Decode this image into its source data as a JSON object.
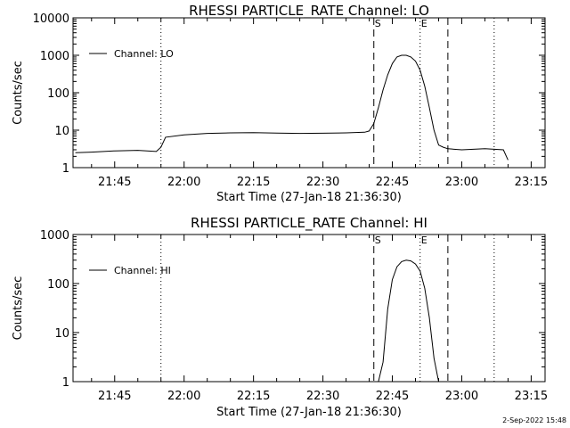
{
  "footer": "2-Sep-2022 15:48",
  "chart_data": [
    {
      "type": "line",
      "title": "RHESSI PARTICLE_RATE Channel: LO",
      "xlabel": "Start Time (27-Jan-18 21:36:30)",
      "ylabel": "Counts/sec",
      "yscale": "log",
      "ylim": [
        1,
        10000
      ],
      "xlim_minutes": [
        21.6,
        23.3
      ],
      "x_ticks": [
        "21:45",
        "22:00",
        "22:15",
        "22:30",
        "22:45",
        "23:00",
        "23:15"
      ],
      "y_ticks": [
        "1",
        "10",
        "100",
        "1000",
        "10000"
      ],
      "legend": {
        "label": "Channel: LO",
        "position": "top-left"
      },
      "vlines": [
        {
          "x": "21:55",
          "style": "dotted",
          "label": ""
        },
        {
          "x": "22:41",
          "style": "dashed",
          "label": "S"
        },
        {
          "x": "22:51",
          "style": "dotted",
          "label": "E"
        },
        {
          "x": "22:57",
          "style": "dashed",
          "label": ""
        },
        {
          "x": "23:07",
          "style": "dotted",
          "label": ""
        }
      ],
      "series": [
        {
          "name": "Channel: LO",
          "x": [
            "21:36:30",
            "21:40",
            "21:45",
            "21:50",
            "21:54",
            "21:55",
            "21:56",
            "22:00",
            "22:05",
            "22:10",
            "22:15",
            "22:20",
            "22:25",
            "22:30",
            "22:35",
            "22:39",
            "22:40",
            "22:41",
            "22:42",
            "22:43",
            "22:44",
            "22:45",
            "22:46",
            "22:47",
            "22:48",
            "22:49",
            "22:50",
            "22:51",
            "22:52",
            "22:53",
            "22:54",
            "22:55",
            "22:56",
            "22:57",
            "23:00",
            "23:05",
            "23:09",
            "23:10"
          ],
          "y": [
            2.5,
            2.6,
            2.8,
            2.9,
            2.7,
            3.5,
            6.5,
            7.5,
            8.2,
            8.5,
            8.6,
            8.4,
            8.2,
            8.3,
            8.5,
            8.8,
            9.5,
            15,
            40,
            120,
            300,
            600,
            900,
            1000,
            1000,
            900,
            700,
            400,
            150,
            40,
            10,
            4,
            3.5,
            3.2,
            3.0,
            3.2,
            3.0,
            1.6
          ]
        }
      ]
    },
    {
      "type": "line",
      "title": "RHESSI PARTICLE_RATE Channel: HI",
      "xlabel": "Start Time (27-Jan-18 21:36:30)",
      "ylabel": "Counts/sec",
      "yscale": "log",
      "ylim": [
        1,
        1000
      ],
      "xlim_minutes": [
        21.6,
        23.3
      ],
      "x_ticks": [
        "21:45",
        "22:00",
        "22:15",
        "22:30",
        "22:45",
        "23:00",
        "23:15"
      ],
      "y_ticks": [
        "1",
        "10",
        "100",
        "1000"
      ],
      "legend": {
        "label": "Channel: HI",
        "position": "top-left"
      },
      "vlines": [
        {
          "x": "21:55",
          "style": "dotted",
          "label": ""
        },
        {
          "x": "22:41",
          "style": "dashed",
          "label": "S"
        },
        {
          "x": "22:51",
          "style": "dotted",
          "label": "E"
        },
        {
          "x": "22:57",
          "style": "dashed",
          "label": ""
        },
        {
          "x": "23:07",
          "style": "dotted",
          "label": ""
        }
      ],
      "series": [
        {
          "name": "Channel: HI",
          "x": [
            "22:42",
            "22:43",
            "22:44",
            "22:45",
            "22:46",
            "22:47",
            "22:48",
            "22:49",
            "22:50",
            "22:51",
            "22:52",
            "22:53",
            "22:54",
            "22:55"
          ],
          "y": [
            1.0,
            2.5,
            30,
            120,
            220,
            280,
            300,
            290,
            250,
            180,
            80,
            20,
            3,
            1.0
          ]
        }
      ]
    }
  ]
}
